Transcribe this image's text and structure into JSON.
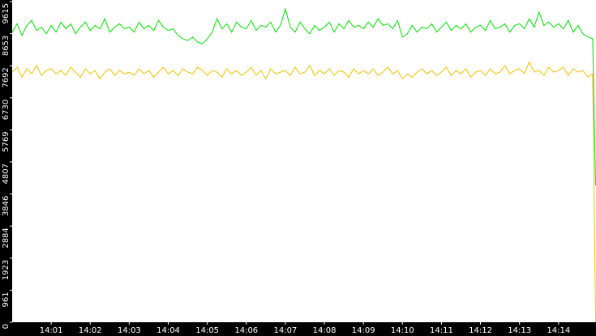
{
  "chart_data": {
    "type": "line",
    "x": [
      0,
      0.125,
      0.25,
      0.375,
      0.5,
      0.625,
      0.75,
      0.875,
      1,
      1.125,
      1.25,
      1.375,
      1.5,
      1.625,
      1.75,
      1.875,
      2,
      2.125,
      2.25,
      2.375,
      2.5,
      2.625,
      2.75,
      2.875,
      3,
      3.125,
      3.25,
      3.375,
      3.5,
      3.625,
      3.75,
      3.875,
      4,
      4.125,
      4.25,
      4.375,
      4.5,
      4.625,
      4.75,
      4.875,
      5,
      5.125,
      5.25,
      5.375,
      5.5,
      5.625,
      5.75,
      5.875,
      6,
      6.125,
      6.25,
      6.375,
      6.5,
      6.625,
      6.75,
      6.875,
      7,
      7.125,
      7.25,
      7.375,
      7.5,
      7.625,
      7.75,
      7.875,
      8,
      8.125,
      8.25,
      8.375,
      8.5,
      8.625,
      8.75,
      8.875,
      9,
      9.125,
      9.25,
      9.375,
      9.5,
      9.625,
      9.75,
      9.875,
      10,
      10.125,
      10.25,
      10.375,
      10.5,
      10.625,
      10.75,
      10.875,
      11,
      11.125,
      11.25,
      11.375,
      11.5,
      11.625,
      11.75,
      11.875,
      12,
      12.125,
      12.25,
      12.375,
      12.5,
      12.625,
      12.75,
      12.875,
      13,
      13.125,
      13.25,
      13.375,
      13.5,
      13.625,
      13.75,
      13.875,
      14,
      14.125,
      14.25,
      14.375,
      14.5,
      14.625,
      14.75,
      14.875,
      14.95
    ],
    "series": [
      {
        "color": "#00e000",
        "values": [
          8700,
          8950,
          8600,
          8900,
          9050,
          8750,
          8850,
          8650,
          8900,
          8700,
          9000,
          8800,
          8950,
          8650,
          8850,
          9000,
          8750,
          8900,
          8800,
          9100,
          8700,
          8850,
          8950,
          8800,
          8850,
          8700,
          9000,
          8800,
          8900,
          8750,
          9050,
          8850,
          8750,
          8800,
          8600,
          8500,
          8450,
          8550,
          8400,
          8350,
          8500,
          8700,
          9100,
          8800,
          8950,
          8700,
          9000,
          8850,
          8800,
          9050,
          8750,
          8900,
          8850,
          9000,
          8700,
          8900,
          9400,
          8850,
          8700,
          9000,
          8800,
          8650,
          8900,
          8750,
          8850,
          9000,
          8700,
          8950,
          8800,
          9050,
          8850,
          8900,
          8800,
          9000,
          8850,
          9100,
          8900,
          8950,
          8800,
          9050,
          8550,
          8650,
          8900,
          8700,
          8850,
          8800,
          8950,
          8700,
          8850,
          9000,
          8750,
          8900,
          8800,
          8950,
          8700,
          8850,
          8900,
          8750,
          9050,
          8800,
          8850,
          8950,
          8700,
          8900,
          8950,
          8800,
          9100,
          8850,
          9300,
          8900,
          9000,
          8850,
          8950,
          8800,
          9050,
          8700,
          8900,
          8650,
          8550,
          8500,
          4100
        ]
      },
      {
        "color": "#f0c000",
        "values": [
          7500,
          7650,
          7350,
          7600,
          7450,
          7700,
          7400,
          7550,
          7600,
          7450,
          7550,
          7400,
          7650,
          7500,
          7350,
          7600,
          7450,
          7550,
          7300,
          7500,
          7600,
          7400,
          7550,
          7450,
          7500,
          7400,
          7600,
          7450,
          7550,
          7350,
          7500,
          7650,
          7450,
          7550,
          7400,
          7600,
          7500,
          7450,
          7650,
          7550,
          7400,
          7550,
          7500,
          7350,
          7600,
          7450,
          7550,
          7400,
          7500,
          7650,
          7400,
          7550,
          7300,
          7600,
          7450,
          7500,
          7550,
          7400,
          7650,
          7450,
          7500,
          7700,
          7400,
          7550,
          7450,
          7600,
          7400,
          7550,
          7500,
          7350,
          7600,
          7450,
          7550,
          7450,
          7600,
          7400,
          7500,
          7650,
          7450,
          7550,
          7300,
          7450,
          7350,
          7500,
          7600,
          7450,
          7550,
          7400,
          7500,
          7650,
          7400,
          7550,
          7450,
          7600,
          7350,
          7500,
          7550,
          7400,
          7600,
          7450,
          7500,
          7700,
          7450,
          7550,
          7600,
          7450,
          7800,
          7500,
          7550,
          7400,
          7650,
          7500,
          7550,
          7650,
          7400,
          7600,
          7500,
          7550,
          7350,
          7450,
          0
        ]
      }
    ],
    "xlim": [
      0,
      14.96
    ],
    "xticks": [
      {
        "value": 1,
        "label": "14:01"
      },
      {
        "value": 2,
        "label": "14:02"
      },
      {
        "value": 3,
        "label": "14:03"
      },
      {
        "value": 4,
        "label": "14:04"
      },
      {
        "value": 5,
        "label": "14:05"
      },
      {
        "value": 6,
        "label": "14:06"
      },
      {
        "value": 7,
        "label": "14:07"
      },
      {
        "value": 8,
        "label": "14:08"
      },
      {
        "value": 9,
        "label": "14:09"
      },
      {
        "value": 10,
        "label": "14:10"
      },
      {
        "value": 11,
        "label": "14:11"
      },
      {
        "value": 12,
        "label": "14:12"
      },
      {
        "value": 13,
        "label": "14:13"
      },
      {
        "value": 14,
        "label": "14:14"
      }
    ],
    "ylim": [
      0,
      9615
    ],
    "yticks": [
      0,
      961,
      1923,
      2884,
      3846,
      4807,
      5769,
      6730,
      7692,
      8653,
      9615
    ]
  }
}
